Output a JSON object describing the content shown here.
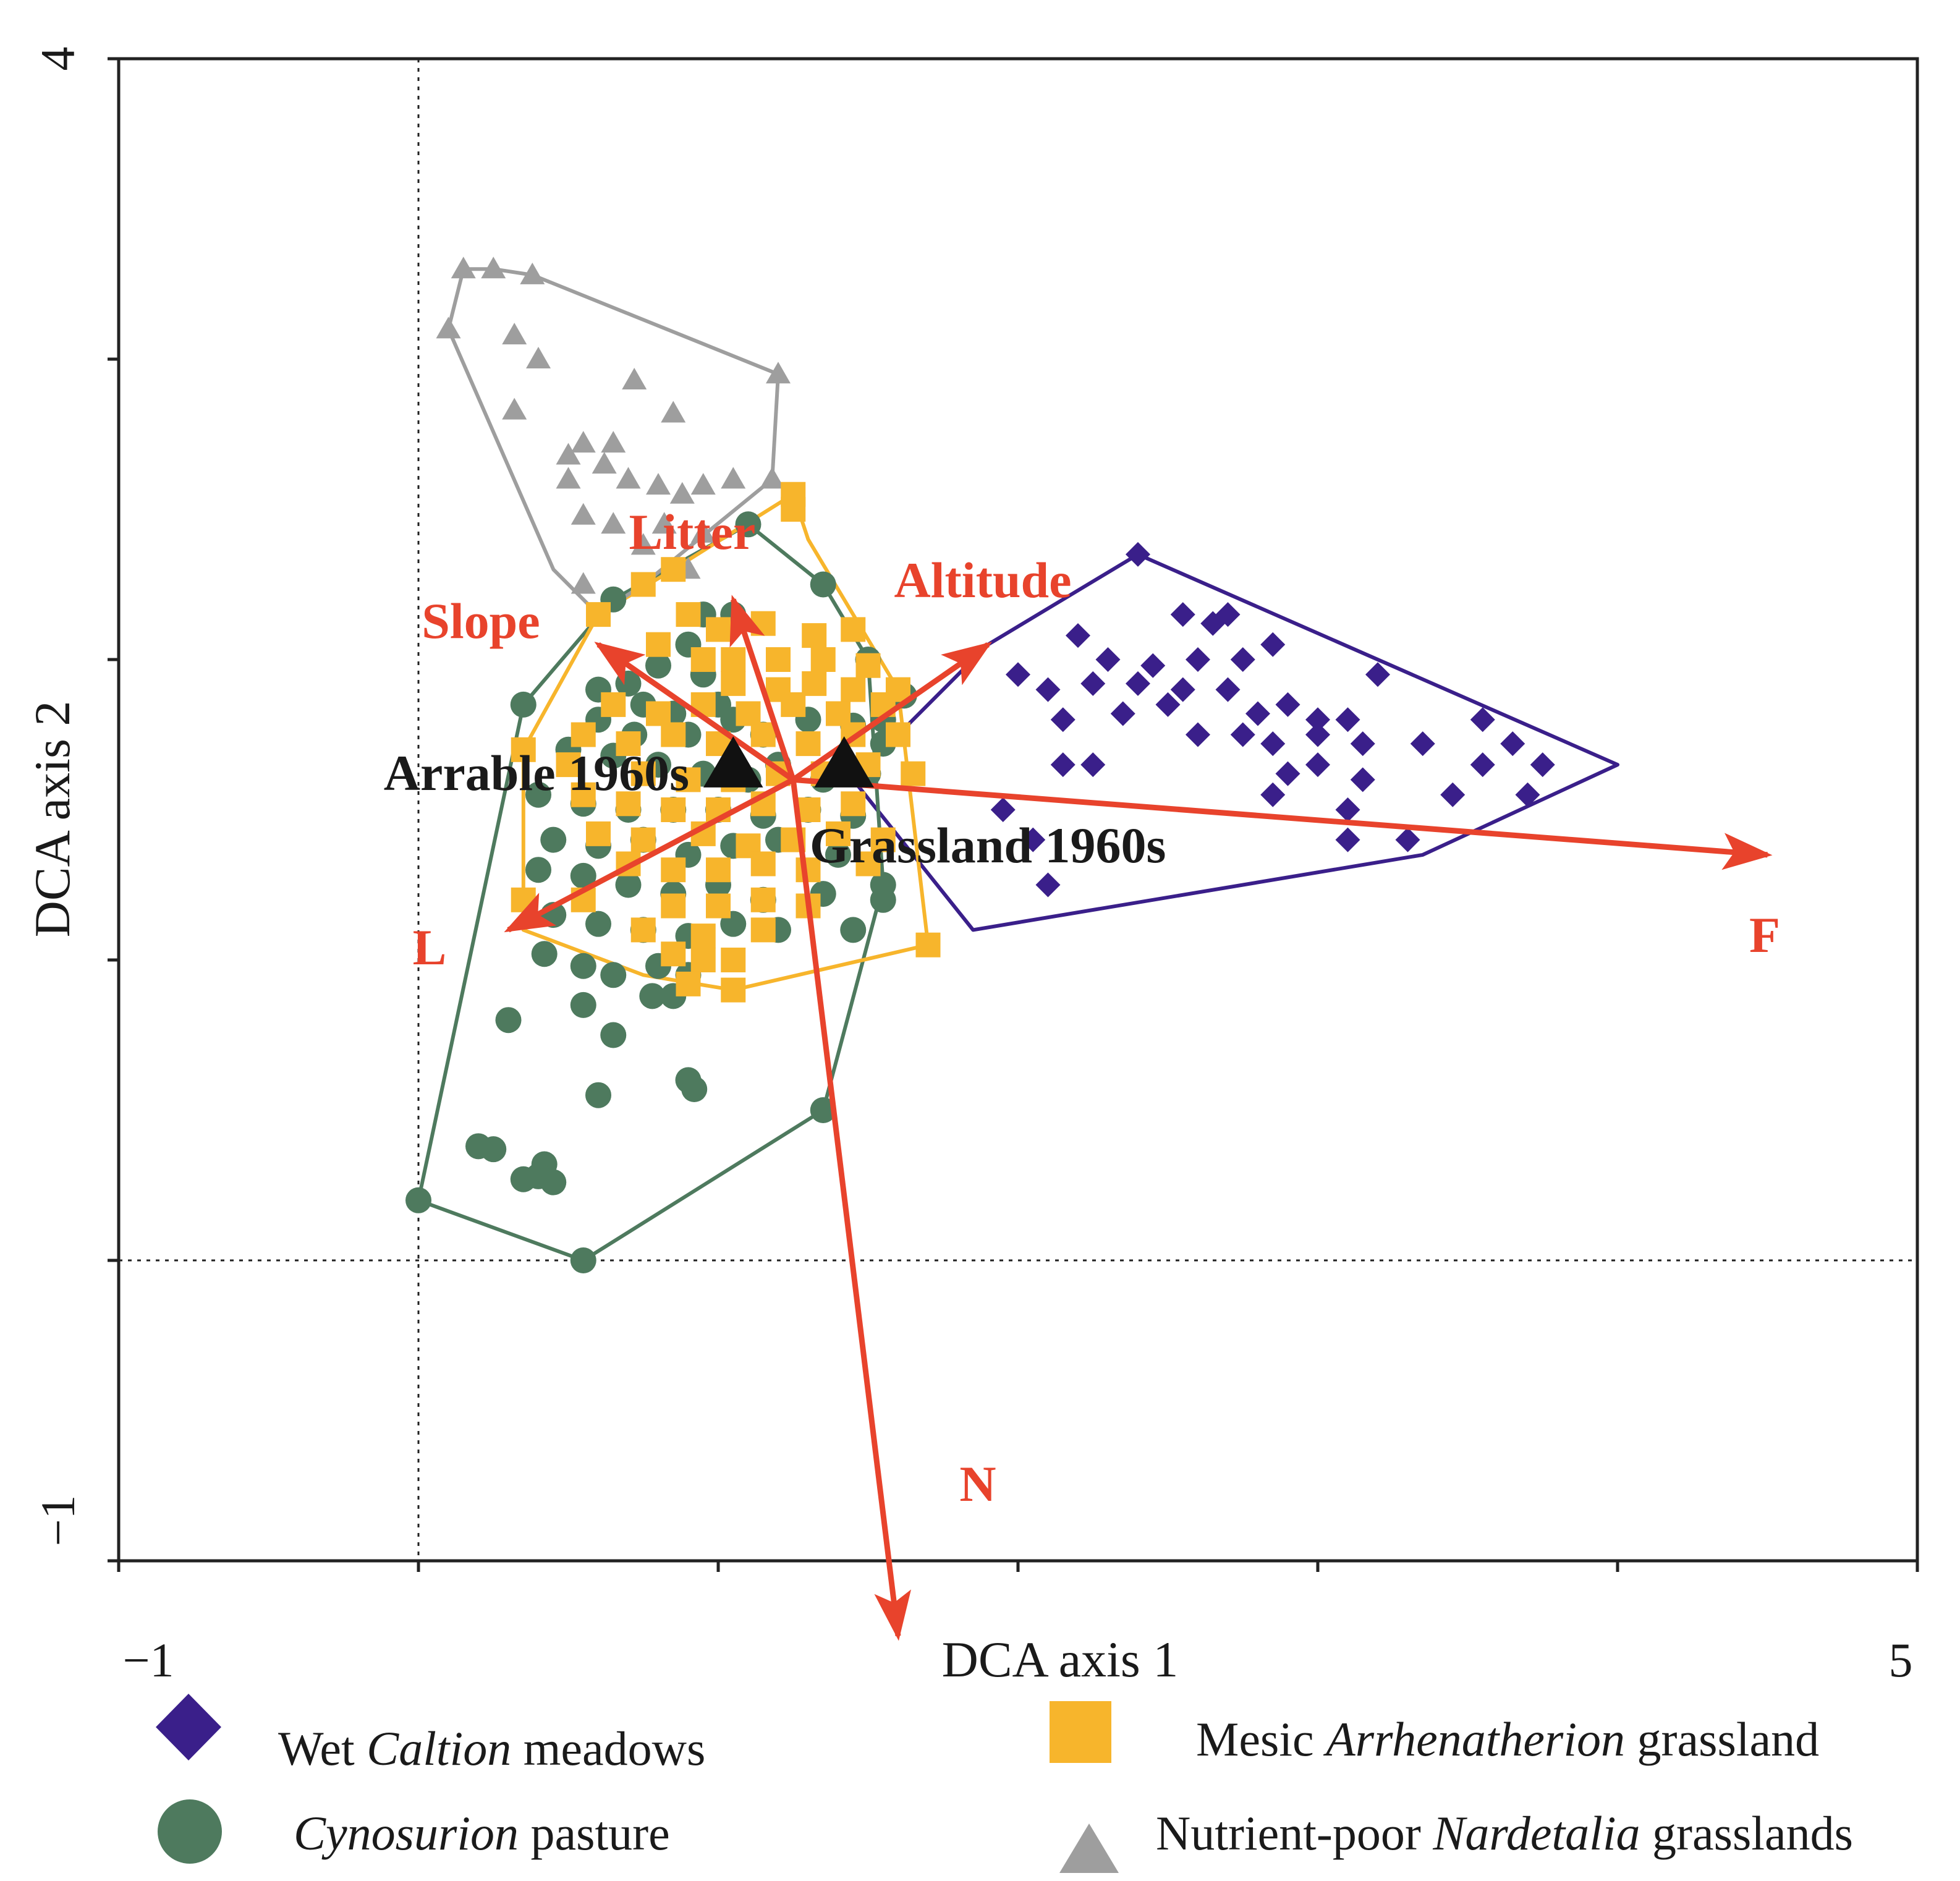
{
  "chart_data": {
    "type": "scatter",
    "subtype": "DCA ordination biplot",
    "xlabel": "DCA axis 1",
    "ylabel": "DCA axis 2",
    "xlim": [
      -1,
      5
    ],
    "ylim": [
      -1,
      4
    ],
    "x_tick_labels": [
      "−1",
      "5"
    ],
    "y_tick_labels": [
      "4",
      "−1"
    ],
    "reference_lines": {
      "x": 0,
      "y": 0
    },
    "colors": {
      "wet": "#3a1f8a",
      "pasture": "#4e7a5e",
      "mesic": "#f7b52c",
      "nardetalia": "#9e9e9e",
      "vector": "#e8432c",
      "centroid": "#111111"
    },
    "legend": [
      {
        "key": "wet",
        "marker": "diamond",
        "pre": "Wet ",
        "italic": "Caltion",
        "post": " meadows"
      },
      {
        "key": "mesic",
        "marker": "square",
        "pre": "Mesic ",
        "italic": "Arrhenatherion",
        "post": " grassland"
      },
      {
        "key": "pasture",
        "marker": "circle",
        "pre": "",
        "italic": "Cynosurion",
        "post": " pasture"
      },
      {
        "key": "nardetalia",
        "marker": "triangle",
        "pre": "Nutrient-poor ",
        "italic": "Nardetalia",
        "post": " grasslands"
      }
    ],
    "vectors": {
      "origin": [
        1.25,
        1.6
      ],
      "items": [
        {
          "label": "F",
          "end": [
            4.5,
            1.35
          ]
        },
        {
          "label": "N",
          "end": [
            1.6,
            -1.25
          ]
        },
        {
          "label": "L",
          "end": [
            0.3,
            1.1
          ]
        },
        {
          "label": "Slope",
          "end": [
            0.6,
            2.05
          ]
        },
        {
          "label": "Litter",
          "end": [
            1.05,
            2.2
          ]
        },
        {
          "label": "Altitude",
          "end": [
            1.9,
            2.05
          ]
        }
      ]
    },
    "centroids": [
      {
        "label": "Arrable 1960s",
        "x": 1.05,
        "y": 1.65
      },
      {
        "label": "Grassland 1960s",
        "x": 1.42,
        "y": 1.65
      }
    ],
    "series": [
      {
        "name": "Wet Caltion meadows",
        "key": "wet",
        "marker": "diamond",
        "hull": [
          [
            1.9,
            2.05
          ],
          [
            2.4,
            2.35
          ],
          [
            4.0,
            1.65
          ],
          [
            3.35,
            1.35
          ],
          [
            1.85,
            1.1
          ],
          [
            1.45,
            1.6
          ]
        ],
        "points": [
          [
            2.4,
            2.35
          ],
          [
            2.55,
            2.15
          ],
          [
            2.65,
            2.12
          ],
          [
            2.7,
            2.15
          ],
          [
            2.2,
            2.08
          ],
          [
            2.3,
            2.0
          ],
          [
            2.45,
            1.98
          ],
          [
            2.6,
            2.0
          ],
          [
            2.75,
            2.0
          ],
          [
            2.85,
            2.05
          ],
          [
            3.2,
            1.95
          ],
          [
            2.0,
            1.95
          ],
          [
            2.1,
            1.9
          ],
          [
            2.25,
            1.92
          ],
          [
            2.4,
            1.92
          ],
          [
            2.55,
            1.9
          ],
          [
            2.7,
            1.9
          ],
          [
            2.9,
            1.85
          ],
          [
            2.15,
            1.8
          ],
          [
            2.35,
            1.82
          ],
          [
            2.5,
            1.85
          ],
          [
            2.8,
            1.82
          ],
          [
            3.0,
            1.8
          ],
          [
            3.1,
            1.8
          ],
          [
            3.55,
            1.8
          ],
          [
            3.65,
            1.72
          ],
          [
            2.6,
            1.75
          ],
          [
            2.75,
            1.75
          ],
          [
            2.85,
            1.72
          ],
          [
            3.0,
            1.75
          ],
          [
            3.15,
            1.72
          ],
          [
            3.35,
            1.72
          ],
          [
            2.15,
            1.65
          ],
          [
            2.25,
            1.65
          ],
          [
            2.9,
            1.62
          ],
          [
            3.0,
            1.65
          ],
          [
            3.15,
            1.6
          ],
          [
            3.55,
            1.65
          ],
          [
            3.75,
            1.65
          ],
          [
            2.85,
            1.55
          ],
          [
            3.1,
            1.5
          ],
          [
            3.45,
            1.55
          ],
          [
            3.7,
            1.55
          ],
          [
            1.95,
            1.5
          ],
          [
            2.05,
            1.4
          ],
          [
            3.3,
            1.4
          ],
          [
            3.1,
            1.4
          ],
          [
            2.1,
            1.25
          ]
        ]
      },
      {
        "name": "Cynosurion pasture",
        "key": "pasture",
        "marker": "circle",
        "hull": [
          [
            1.1,
            2.45
          ],
          [
            0.65,
            2.2
          ],
          [
            0.35,
            1.85
          ],
          [
            0.0,
            0.2
          ],
          [
            0.55,
            0.0
          ],
          [
            1.35,
            0.5
          ],
          [
            1.55,
            1.25
          ],
          [
            1.5,
            2.0
          ],
          [
            1.35,
            2.25
          ]
        ],
        "points": [
          [
            1.1,
            2.45
          ],
          [
            0.65,
            2.2
          ],
          [
            0.35,
            1.85
          ],
          [
            0.0,
            0.2
          ],
          [
            0.55,
            0.0
          ],
          [
            1.35,
            0.5
          ],
          [
            1.55,
            1.25
          ],
          [
            1.5,
            2.0
          ],
          [
            1.35,
            2.25
          ],
          [
            0.95,
            2.15
          ],
          [
            1.05,
            2.15
          ],
          [
            0.9,
            2.05
          ],
          [
            0.8,
            1.98
          ],
          [
            0.95,
            1.95
          ],
          [
            0.7,
            1.92
          ],
          [
            0.6,
            1.9
          ],
          [
            0.75,
            1.85
          ],
          [
            0.85,
            1.82
          ],
          [
            1.0,
            1.85
          ],
          [
            0.6,
            1.8
          ],
          [
            0.72,
            1.75
          ],
          [
            0.9,
            1.75
          ],
          [
            1.05,
            1.8
          ],
          [
            1.15,
            1.75
          ],
          [
            1.3,
            1.8
          ],
          [
            1.45,
            1.78
          ],
          [
            1.55,
            1.72
          ],
          [
            0.5,
            1.7
          ],
          [
            0.65,
            1.68
          ],
          [
            0.8,
            1.65
          ],
          [
            0.95,
            1.62
          ],
          [
            1.1,
            1.6
          ],
          [
            1.2,
            1.65
          ],
          [
            1.35,
            1.6
          ],
          [
            1.5,
            1.62
          ],
          [
            0.4,
            1.55
          ],
          [
            0.55,
            1.52
          ],
          [
            0.7,
            1.5
          ],
          [
            0.85,
            1.5
          ],
          [
            1.0,
            1.5
          ],
          [
            1.15,
            1.48
          ],
          [
            1.3,
            1.5
          ],
          [
            1.45,
            1.48
          ],
          [
            0.45,
            1.4
          ],
          [
            0.6,
            1.38
          ],
          [
            0.75,
            1.4
          ],
          [
            0.9,
            1.35
          ],
          [
            1.05,
            1.38
          ],
          [
            1.2,
            1.4
          ],
          [
            1.4,
            1.35
          ],
          [
            0.4,
            1.3
          ],
          [
            0.55,
            1.28
          ],
          [
            0.7,
            1.25
          ],
          [
            0.85,
            1.22
          ],
          [
            1.0,
            1.25
          ],
          [
            1.15,
            1.2
          ],
          [
            1.35,
            1.22
          ],
          [
            1.55,
            1.2
          ],
          [
            0.45,
            1.15
          ],
          [
            0.6,
            1.12
          ],
          [
            0.75,
            1.1
          ],
          [
            0.9,
            1.08
          ],
          [
            1.05,
            1.12
          ],
          [
            1.2,
            1.1
          ],
          [
            1.45,
            1.1
          ],
          [
            0.42,
            1.02
          ],
          [
            0.55,
            0.98
          ],
          [
            0.65,
            0.95
          ],
          [
            0.8,
            0.98
          ],
          [
            0.9,
            0.95
          ],
          [
            0.78,
            0.88
          ],
          [
            0.85,
            0.88
          ],
          [
            0.55,
            0.85
          ],
          [
            0.3,
            0.8
          ],
          [
            0.65,
            0.75
          ],
          [
            0.9,
            0.6
          ],
          [
            0.6,
            0.55
          ],
          [
            0.92,
            0.57
          ],
          [
            0.2,
            0.38
          ],
          [
            0.25,
            0.37
          ],
          [
            0.42,
            0.32
          ],
          [
            0.4,
            0.28
          ],
          [
            0.35,
            0.27
          ],
          [
            0.45,
            0.26
          ],
          [
            1.55,
            1.8
          ],
          [
            1.62,
            1.88
          ]
        ]
      },
      {
        "name": "Mesic Arrhenatherion grassland",
        "key": "mesic",
        "marker": "square",
        "hull": [
          [
            1.25,
            2.55
          ],
          [
            0.85,
            2.3
          ],
          [
            0.6,
            2.15
          ],
          [
            0.35,
            1.7
          ],
          [
            0.35,
            1.1
          ],
          [
            0.75,
            0.95
          ],
          [
            1.05,
            0.9
          ],
          [
            1.7,
            1.05
          ],
          [
            1.6,
            1.9
          ],
          [
            1.3,
            2.4
          ]
        ],
        "points": [
          [
            1.25,
            2.55
          ],
          [
            1.25,
            2.5
          ],
          [
            0.75,
            2.25
          ],
          [
            0.85,
            2.3
          ],
          [
            0.6,
            2.15
          ],
          [
            0.9,
            2.15
          ],
          [
            1.0,
            2.1
          ],
          [
            1.15,
            2.12
          ],
          [
            1.32,
            2.08
          ],
          [
            1.45,
            2.1
          ],
          [
            0.8,
            2.05
          ],
          [
            0.95,
            2.0
          ],
          [
            1.05,
            2.0
          ],
          [
            1.2,
            2.0
          ],
          [
            1.35,
            2.0
          ],
          [
            1.5,
            1.98
          ],
          [
            1.05,
            1.92
          ],
          [
            1.2,
            1.9
          ],
          [
            1.32,
            1.92
          ],
          [
            1.45,
            1.9
          ],
          [
            1.6,
            1.9
          ],
          [
            0.65,
            1.85
          ],
          [
            0.8,
            1.82
          ],
          [
            0.95,
            1.85
          ],
          [
            1.1,
            1.82
          ],
          [
            1.25,
            1.85
          ],
          [
            1.4,
            1.82
          ],
          [
            1.55,
            1.85
          ],
          [
            0.55,
            1.75
          ],
          [
            0.7,
            1.72
          ],
          [
            0.85,
            1.75
          ],
          [
            1.0,
            1.72
          ],
          [
            1.15,
            1.75
          ],
          [
            1.3,
            1.72
          ],
          [
            1.45,
            1.75
          ],
          [
            1.6,
            1.75
          ],
          [
            0.35,
            1.7
          ],
          [
            0.5,
            1.65
          ],
          [
            0.75,
            1.62
          ],
          [
            0.9,
            1.6
          ],
          [
            1.05,
            1.6
          ],
          [
            1.2,
            1.62
          ],
          [
            1.35,
            1.62
          ],
          [
            1.5,
            1.65
          ],
          [
            1.65,
            1.62
          ],
          [
            0.55,
            1.55
          ],
          [
            0.7,
            1.52
          ],
          [
            0.85,
            1.5
          ],
          [
            1.0,
            1.5
          ],
          [
            1.15,
            1.52
          ],
          [
            1.3,
            1.5
          ],
          [
            1.45,
            1.52
          ],
          [
            0.6,
            1.42
          ],
          [
            0.75,
            1.4
          ],
          [
            0.95,
            1.42
          ],
          [
            1.1,
            1.38
          ],
          [
            1.25,
            1.4
          ],
          [
            1.4,
            1.42
          ],
          [
            1.55,
            1.4
          ],
          [
            0.7,
            1.32
          ],
          [
            0.85,
            1.3
          ],
          [
            1.0,
            1.3
          ],
          [
            1.15,
            1.32
          ],
          [
            1.3,
            1.3
          ],
          [
            1.5,
            1.32
          ],
          [
            0.35,
            1.2
          ],
          [
            0.55,
            1.2
          ],
          [
            0.85,
            1.18
          ],
          [
            1.0,
            1.18
          ],
          [
            1.15,
            1.2
          ],
          [
            1.3,
            1.18
          ],
          [
            0.75,
            1.1
          ],
          [
            0.95,
            1.08
          ],
          [
            1.15,
            1.1
          ],
          [
            0.85,
            1.02
          ],
          [
            0.95,
            1.0
          ],
          [
            1.05,
            1.0
          ],
          [
            0.9,
            0.92
          ],
          [
            1.05,
            0.9
          ],
          [
            1.7,
            1.05
          ]
        ]
      },
      {
        "name": "Nutrient-poor Nardetalia grasslands",
        "key": "nardetalia",
        "marker": "triangle",
        "hull": [
          [
            0.15,
            3.3
          ],
          [
            0.25,
            3.3
          ],
          [
            0.38,
            3.28
          ],
          [
            1.2,
            2.95
          ],
          [
            1.18,
            2.6
          ],
          [
            0.75,
            2.25
          ],
          [
            0.6,
            2.15
          ],
          [
            0.45,
            2.3
          ],
          [
            0.1,
            3.1
          ]
        ],
        "points": [
          [
            0.15,
            3.3
          ],
          [
            0.25,
            3.3
          ],
          [
            0.38,
            3.28
          ],
          [
            0.1,
            3.1
          ],
          [
            0.32,
            3.08
          ],
          [
            0.4,
            3.0
          ],
          [
            0.72,
            2.93
          ],
          [
            0.32,
            2.83
          ],
          [
            0.85,
            2.82
          ],
          [
            0.55,
            2.72
          ],
          [
            0.65,
            2.72
          ],
          [
            0.5,
            2.68
          ],
          [
            0.62,
            2.65
          ],
          [
            0.7,
            2.6
          ],
          [
            0.8,
            2.58
          ],
          [
            0.5,
            2.6
          ],
          [
            0.88,
            2.55
          ],
          [
            0.95,
            2.58
          ],
          [
            1.05,
            2.6
          ],
          [
            1.18,
            2.6
          ],
          [
            1.2,
            2.95
          ],
          [
            0.55,
            2.48
          ],
          [
            0.65,
            2.45
          ],
          [
            0.82,
            2.45
          ],
          [
            0.95,
            2.42
          ],
          [
            0.75,
            2.38
          ],
          [
            0.9,
            2.3
          ],
          [
            0.55,
            2.25
          ],
          [
            0.6,
            2.15
          ],
          [
            0.75,
            2.25
          ]
        ]
      }
    ]
  }
}
